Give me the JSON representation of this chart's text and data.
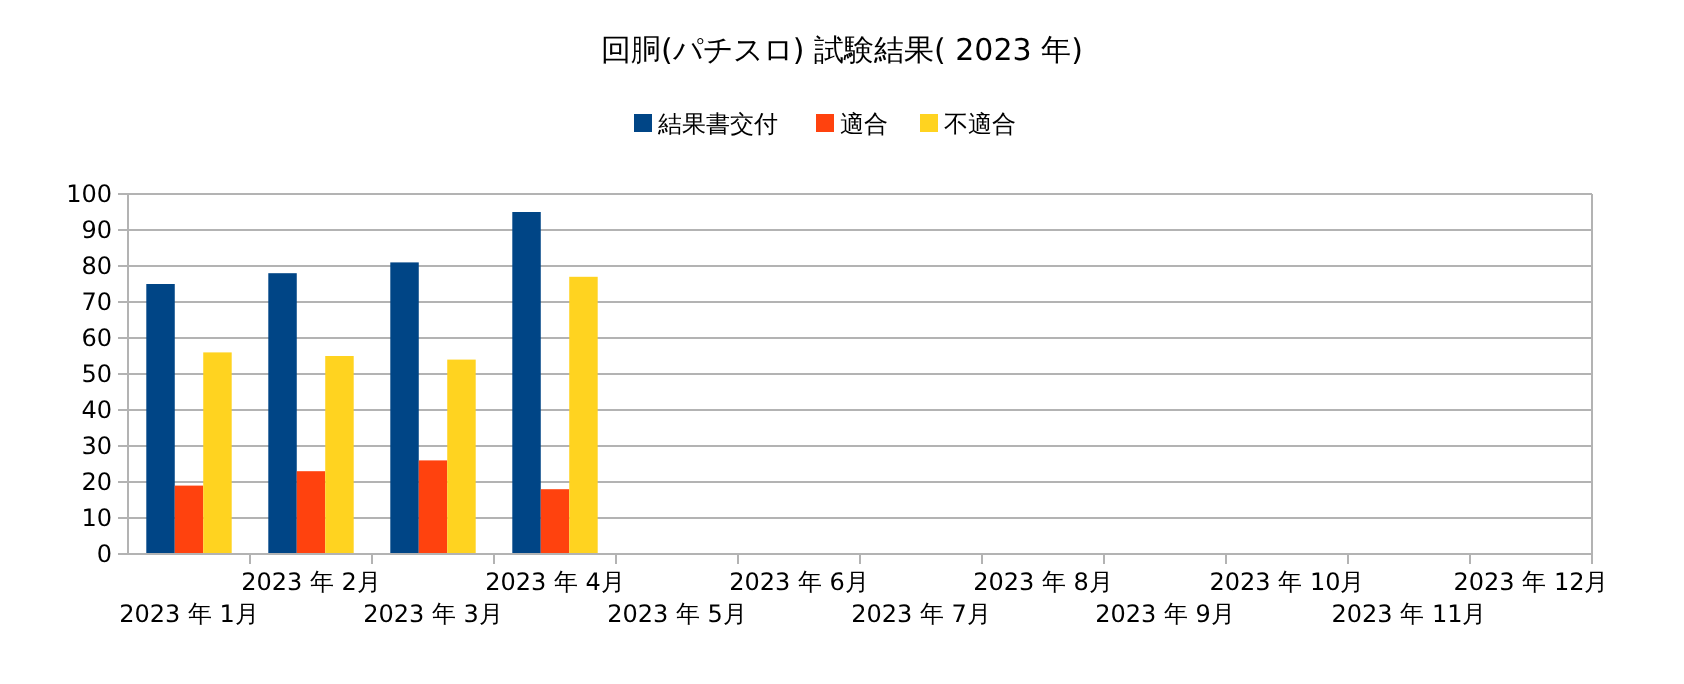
{
  "chart_data": {
    "type": "bar",
    "title": "回胴(パチスロ) 試験結果( 2023 年)",
    "categories": [
      "2023 年 1月",
      "2023 年 2月",
      "2023 年 3月",
      "2023 年 4月",
      "2023 年 5月",
      "2023 年 6月",
      "2023 年 7月",
      "2023 年 8月",
      "2023 年 9月",
      "2023 年 10月",
      "2023 年 11月",
      "2023 年 12月"
    ],
    "series": [
      {
        "name": "結果書交付",
        "color": "#004586",
        "values": [
          75,
          78,
          81,
          95,
          null,
          null,
          null,
          null,
          null,
          null,
          null,
          null
        ]
      },
      {
        "name": "適合",
        "color": "#ff420e",
        "values": [
          19,
          23,
          26,
          18,
          null,
          null,
          null,
          null,
          null,
          null,
          null,
          null
        ]
      },
      {
        "name": "不適合",
        "color": "#ffd320",
        "values": [
          56,
          55,
          54,
          77,
          null,
          null,
          null,
          null,
          null,
          null,
          null,
          null
        ]
      }
    ],
    "ylim": [
      0,
      100
    ],
    "yticks": [
      0,
      10,
      20,
      30,
      40,
      50,
      60,
      70,
      80,
      90,
      100
    ],
    "grid": "y",
    "legend": "top"
  }
}
